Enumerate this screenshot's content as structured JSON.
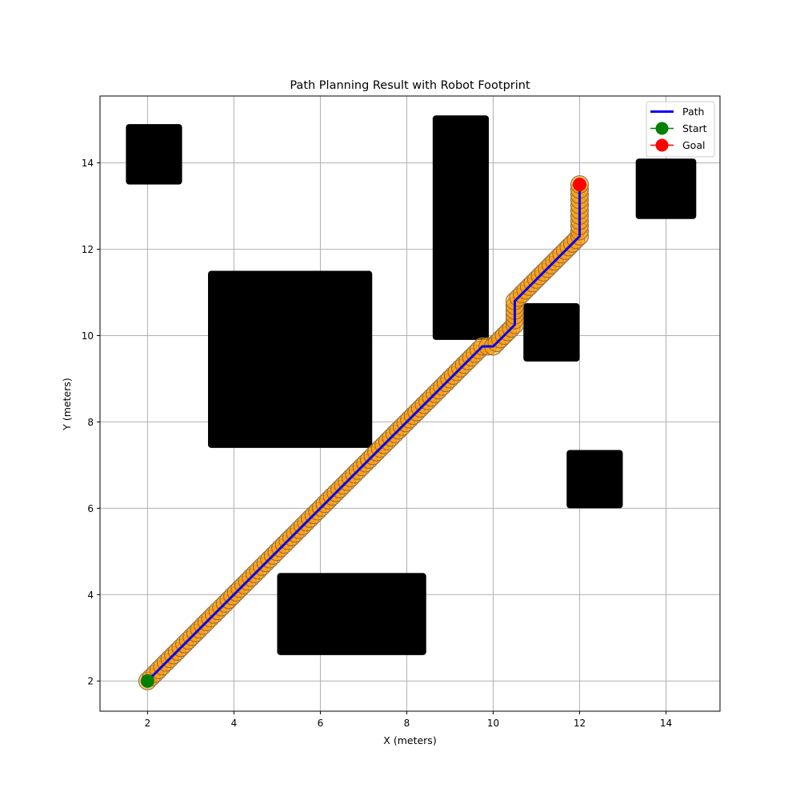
{
  "chart_data": {
    "type": "line",
    "title": "Path Planning Result with Robot Footprint",
    "xlabel": "X (meters)",
    "ylabel": "Y (meters)",
    "xlim": [
      0.9,
      15.25
    ],
    "ylim": [
      1.3,
      15.55
    ],
    "xticks": [
      2,
      4,
      6,
      8,
      10,
      12,
      14
    ],
    "yticks": [
      2,
      4,
      6,
      8,
      10,
      12,
      14
    ],
    "grid": true,
    "legend_position": "top-right",
    "legend": [
      {
        "label": "Path",
        "kind": "line",
        "color": "#0000ff"
      },
      {
        "label": "Start",
        "kind": "marker",
        "color": "#008000"
      },
      {
        "label": "Goal",
        "kind": "marker",
        "color": "#ff0000"
      }
    ],
    "obstacles": [
      {
        "x0": 1.5,
        "x1": 2.8,
        "y0": 13.5,
        "y1": 14.9
      },
      {
        "x0": 3.4,
        "x1": 7.2,
        "y0": 7.4,
        "y1": 11.5
      },
      {
        "x0": 8.6,
        "x1": 9.9,
        "y0": 9.9,
        "y1": 15.1
      },
      {
        "x0": 10.7,
        "x1": 12.0,
        "y0": 9.4,
        "y1": 10.75
      },
      {
        "x0": 13.3,
        "x1": 14.7,
        "y0": 12.7,
        "y1": 14.1
      },
      {
        "x0": 11.7,
        "x1": 13.0,
        "y0": 6.0,
        "y1": 7.35
      },
      {
        "x0": 5.0,
        "x1": 8.45,
        "y0": 2.6,
        "y1": 4.5
      }
    ],
    "path": {
      "name": "Path",
      "color": "#0000ff",
      "x": [
        2.0,
        7.3,
        9.75,
        10.0,
        10.5,
        10.5,
        12.0,
        12.0
      ],
      "y": [
        2.0,
        7.3,
        9.75,
        9.75,
        10.25,
        10.8,
        12.3,
        13.5
      ]
    },
    "footprint": {
      "color": "#ff9900",
      "edge_color": "#8b6a3e"
    },
    "start": {
      "name": "Start",
      "x": 2.0,
      "y": 2.0,
      "color": "#008000"
    },
    "goal": {
      "name": "Goal",
      "x": 12.0,
      "y": 13.5,
      "color": "#ff0000"
    }
  }
}
